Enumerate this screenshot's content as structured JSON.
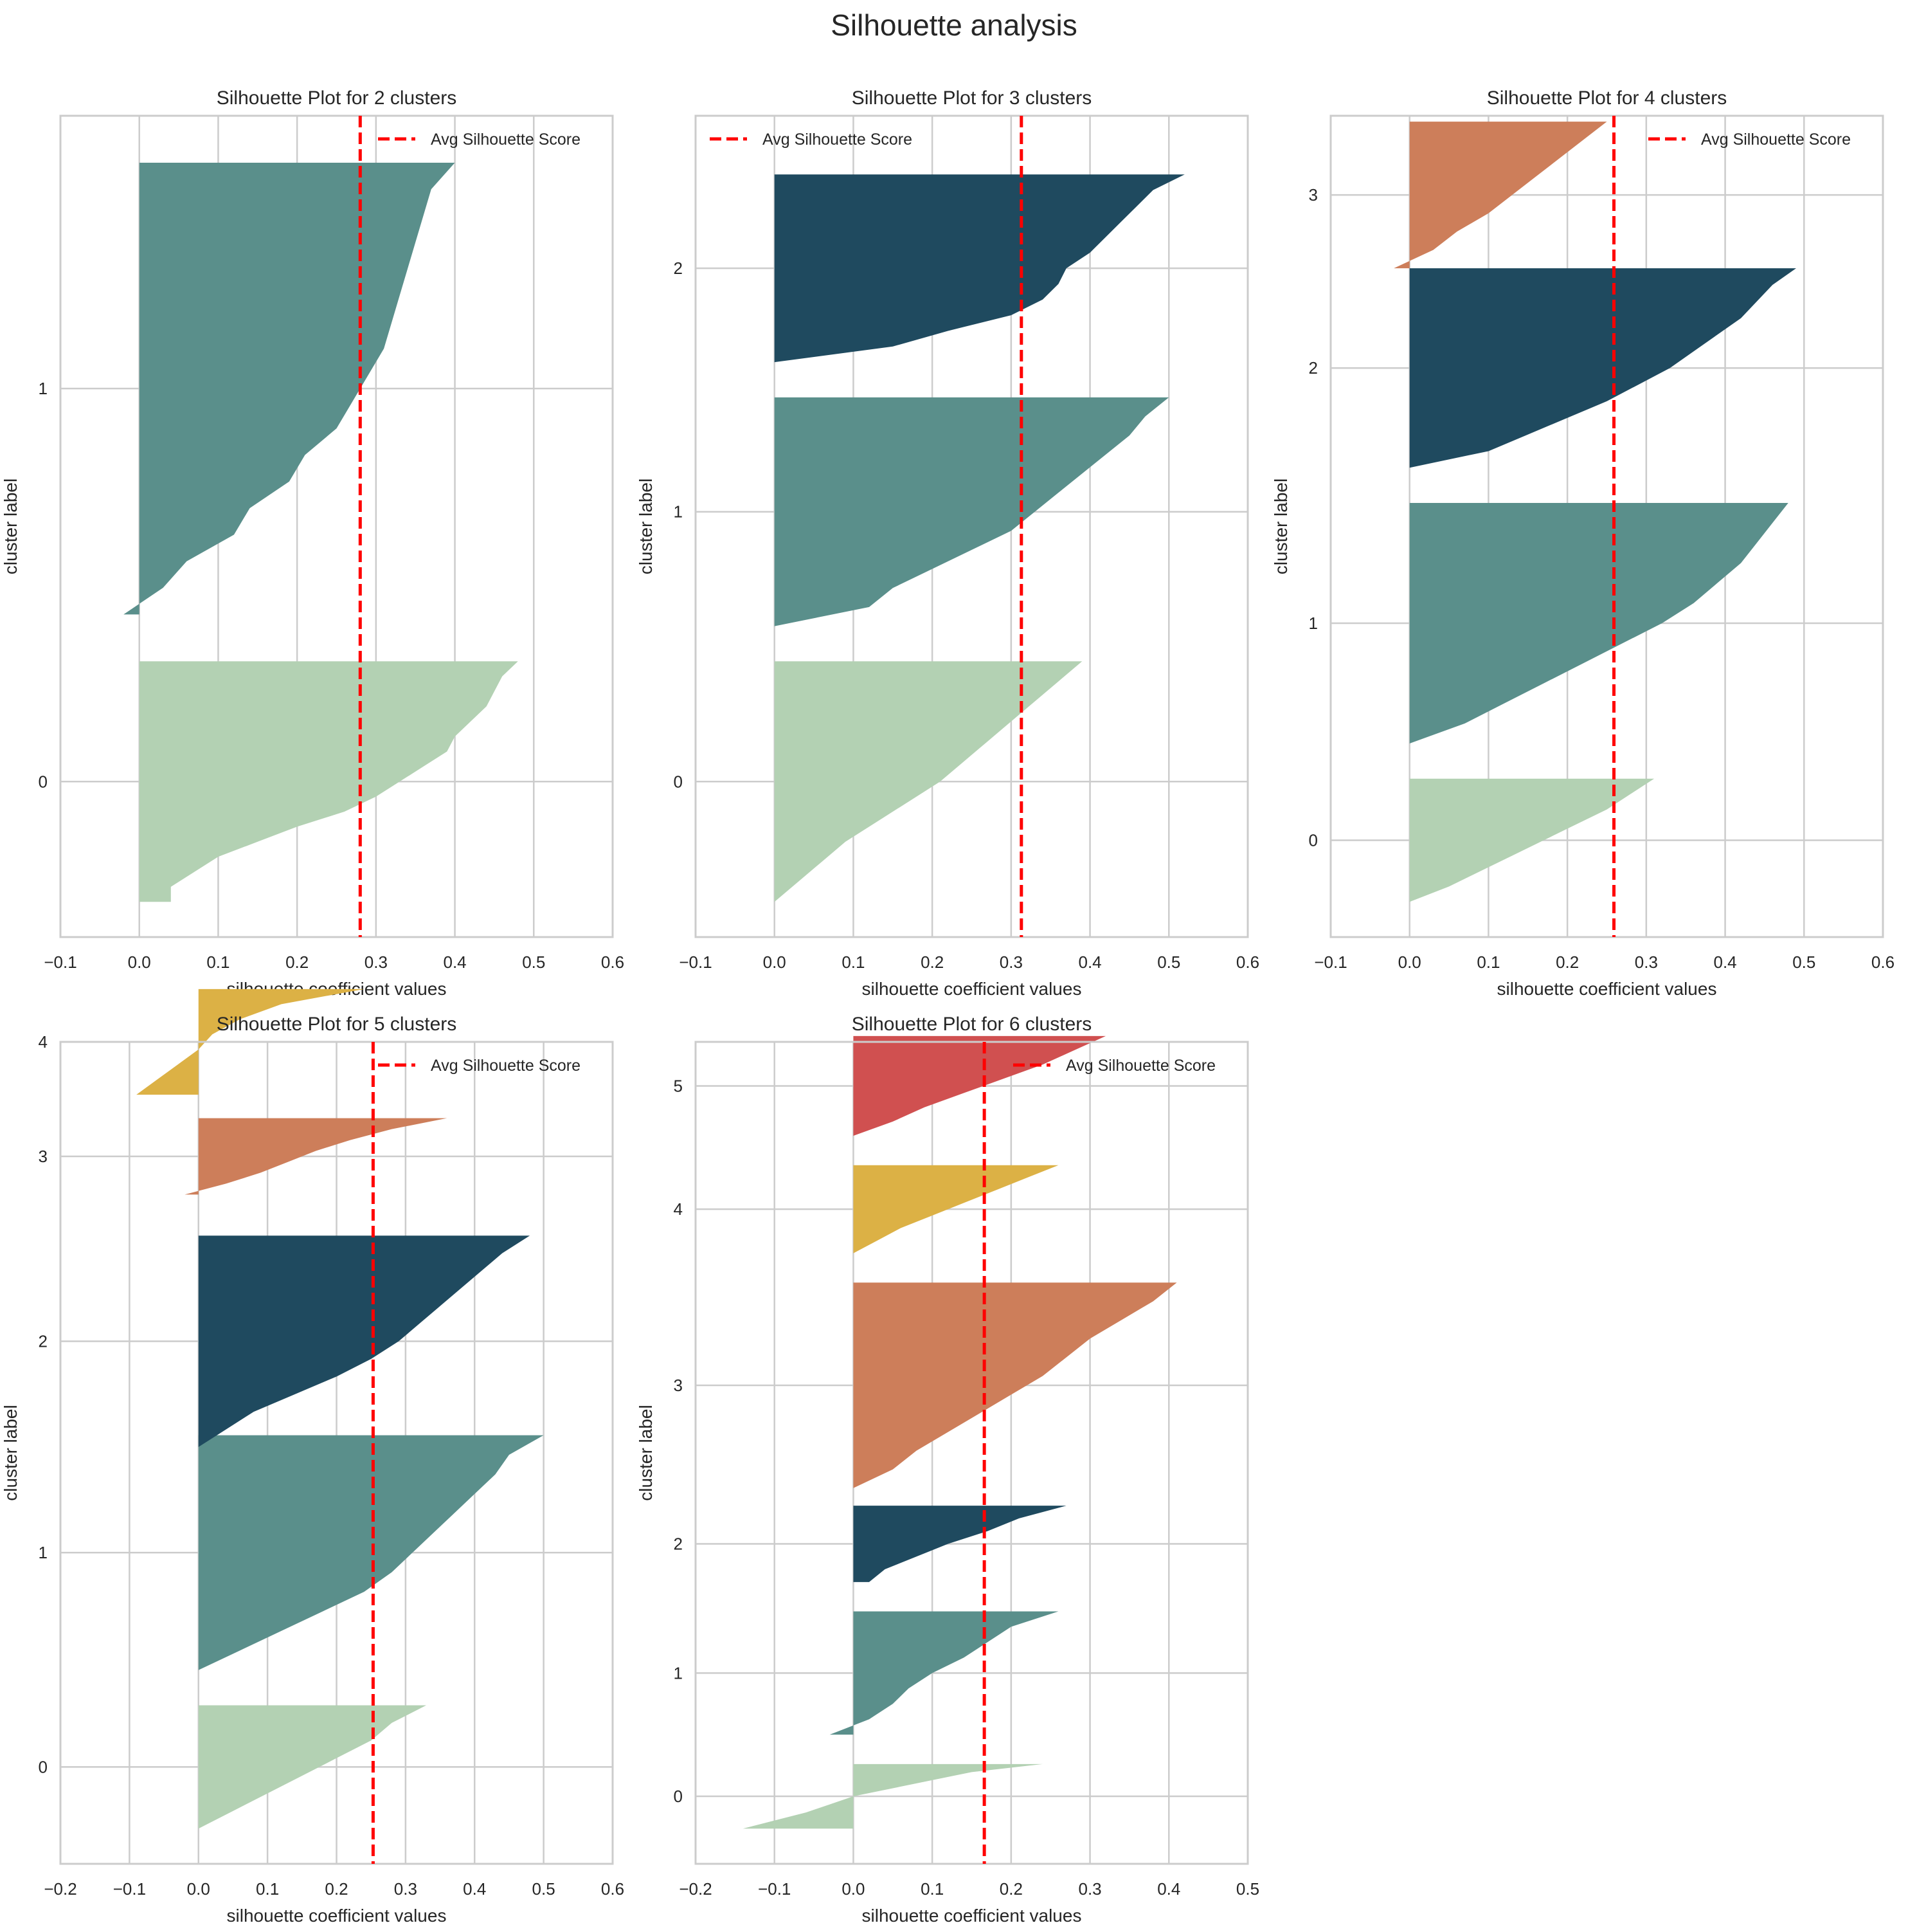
{
  "figure": {
    "title": "Silhouette analysis"
  },
  "chart_data": [
    {
      "type": "area",
      "title": "Silhouette Plot for 2 clusters",
      "xlabel": "silhouette coefficient values",
      "ylabel": "cluster label",
      "xlim": [
        -0.1,
        0.6
      ],
      "xticks": [
        "-0.1",
        "0.0",
        "0.1",
        "0.2",
        "0.3",
        "0.4",
        "0.5",
        "0.6"
      ],
      "ylim": [
        -30,
        670
      ],
      "avg_score": 0.28,
      "legend": {
        "label": "Avg Silhouette Score",
        "position": "top-right"
      },
      "clusters": [
        {
          "label": "0",
          "start": 0,
          "size": 205,
          "color": "#b3d1b3",
          "profile": [
            0.48,
            0.46,
            0.45,
            0.44,
            0.42,
            0.4,
            0.39,
            0.36,
            0.33,
            0.3,
            0.26,
            0.2,
            0.15,
            0.1,
            0.07,
            0.04,
            0.04
          ]
        },
        {
          "label": "1",
          "start": 245,
          "size": 385,
          "color": "#5a8f8b",
          "profile": [
            0.4,
            0.37,
            0.36,
            0.35,
            0.34,
            0.33,
            0.32,
            0.31,
            0.29,
            0.27,
            0.25,
            0.21,
            0.19,
            0.14,
            0.12,
            0.06,
            0.03,
            -0.02
          ]
        }
      ]
    },
    {
      "type": "area",
      "title": "Silhouette Plot for 3 clusters",
      "xlabel": "silhouette coefficient values",
      "ylabel": "cluster label",
      "xlim": [
        -0.1,
        0.6
      ],
      "xticks": [
        "-0.1",
        "0.0",
        "0.1",
        "0.2",
        "0.3",
        "0.4",
        "0.5",
        "0.6"
      ],
      "ylim": [
        -30,
        670
      ],
      "avg_score": 0.313,
      "legend": {
        "label": "Avg Silhouette Score",
        "position": "top-left"
      },
      "clusters": [
        {
          "label": "0",
          "start": 0,
          "size": 205,
          "color": "#b3d1b3",
          "profile": [
            0.39,
            0.36,
            0.33,
            0.3,
            0.27,
            0.24,
            0.21,
            0.17,
            0.13,
            0.09,
            0.06,
            0.03,
            0.0
          ]
        },
        {
          "label": "1",
          "start": 235,
          "size": 195,
          "color": "#5a8f8b",
          "profile": [
            0.5,
            0.47,
            0.45,
            0.42,
            0.39,
            0.36,
            0.33,
            0.3,
            0.25,
            0.2,
            0.15,
            0.12,
            0.0
          ]
        },
        {
          "label": "2",
          "start": 460,
          "size": 160,
          "color": "#1f4a5f",
          "profile": [
            0.52,
            0.48,
            0.46,
            0.44,
            0.42,
            0.4,
            0.37,
            0.36,
            0.34,
            0.3,
            0.22,
            0.15,
            0.0
          ]
        }
      ]
    },
    {
      "type": "area",
      "title": "Silhouette Plot for 4 clusters",
      "xlabel": "silhouette coefficient values",
      "ylabel": "cluster label",
      "xlim": [
        -0.1,
        0.6
      ],
      "xticks": [
        "-0.1",
        "0.0",
        "0.1",
        "0.2",
        "0.3",
        "0.4",
        "0.5",
        "0.6"
      ],
      "ylim": [
        -30,
        670
      ],
      "avg_score": 0.259,
      "legend": {
        "label": "Avg Silhouette Score",
        "position": "top-right"
      },
      "clusters": [
        {
          "label": "0",
          "start": 0,
          "size": 105,
          "color": "#b3d1b3",
          "profile": [
            0.31,
            0.28,
            0.25,
            0.21,
            0.17,
            0.13,
            0.09,
            0.05,
            0.0
          ]
        },
        {
          "label": "1",
          "start": 135,
          "size": 205,
          "color": "#5a8f8b",
          "profile": [
            0.48,
            0.46,
            0.44,
            0.42,
            0.39,
            0.36,
            0.32,
            0.27,
            0.22,
            0.17,
            0.12,
            0.07,
            0.0
          ]
        },
        {
          "label": "2",
          "start": 370,
          "size": 170,
          "color": "#1f4a5f",
          "profile": [
            0.49,
            0.46,
            0.44,
            0.42,
            0.39,
            0.36,
            0.33,
            0.29,
            0.25,
            0.2,
            0.15,
            0.1,
            0.0
          ]
        },
        {
          "label": "3",
          "start": 540,
          "size": 125,
          "color": "#cd7e5a",
          "profile": [
            0.25,
            0.22,
            0.19,
            0.16,
            0.13,
            0.1,
            0.06,
            0.03,
            -0.02
          ]
        }
      ]
    },
    {
      "type": "area",
      "title": "Silhouette Plot for 5 clusters",
      "xlabel": "silhouette coefficient values",
      "ylabel": "cluster label",
      "xlim": [
        -0.2,
        0.6
      ],
      "xticks": [
        "-0.2",
        "-0.1",
        "0.0",
        "0.1",
        "0.2",
        "0.3",
        "0.4",
        "0.5",
        "0.6"
      ],
      "ylim": [
        -30,
        670
      ],
      "avg_score": 0.253,
      "legend": {
        "label": "Avg Silhouette Score",
        "position": "top-right"
      },
      "clusters": [
        {
          "label": "0",
          "start": 0,
          "size": 105,
          "color": "#b3d1b3",
          "profile": [
            0.33,
            0.28,
            0.25,
            0.2,
            0.15,
            0.1,
            0.05,
            0.0
          ]
        },
        {
          "label": "1",
          "start": 135,
          "size": 200,
          "color": "#5a8f8b",
          "profile": [
            0.5,
            0.45,
            0.43,
            0.4,
            0.37,
            0.34,
            0.31,
            0.28,
            0.24,
            0.18,
            0.12,
            0.06,
            0.0
          ]
        },
        {
          "label": "2",
          "start": 325,
          "size": 180,
          "color": "#1f4a5f",
          "profile": [
            0.48,
            0.44,
            0.41,
            0.38,
            0.35,
            0.32,
            0.29,
            0.25,
            0.2,
            0.14,
            0.08,
            0.04,
            0.0
          ]
        },
        {
          "label": "3",
          "start": 540,
          "size": 65,
          "color": "#cd7e5a",
          "profile": [
            0.36,
            0.28,
            0.22,
            0.17,
            0.13,
            0.09,
            0.04,
            -0.02
          ]
        },
        {
          "label": "4",
          "start": 625,
          "size": 90,
          "color": "#dcb145",
          "profile": [
            0.24,
            0.12,
            0.06,
            0.02,
            0.0,
            -0.03,
            -0.06,
            -0.09
          ]
        }
      ]
    },
    {
      "type": "area",
      "title": "Silhouette Plot for 6 clusters",
      "xlabel": "silhouette coefficient values",
      "ylabel": "cluster label",
      "xlim": [
        -0.2,
        0.5
      ],
      "xticks": [
        "-0.2",
        "-0.1",
        "0.0",
        "0.1",
        "0.2",
        "0.3",
        "0.4",
        "0.5"
      ],
      "ylim": [
        -30,
        670
      ],
      "avg_score": 0.166,
      "legend": {
        "label": "Avg Silhouette Score",
        "position": "top-right"
      },
      "clusters": [
        {
          "label": "0",
          "start": 0,
          "size": 55,
          "color": "#b3d1b3",
          "profile": [
            0.24,
            0.15,
            0.1,
            0.05,
            0.0,
            -0.03,
            -0.06,
            -0.1,
            -0.14
          ]
        },
        {
          "label": "1",
          "start": 80,
          "size": 105,
          "color": "#5a8f8b",
          "profile": [
            0.26,
            0.2,
            0.17,
            0.14,
            0.1,
            0.07,
            0.05,
            0.02,
            -0.03
          ]
        },
        {
          "label": "2",
          "start": 210,
          "size": 65,
          "color": "#1f4a5f",
          "profile": [
            0.27,
            0.21,
            0.17,
            0.12,
            0.08,
            0.04,
            0.02
          ]
        },
        {
          "label": "3",
          "start": 290,
          "size": 175,
          "color": "#cd7e5a",
          "profile": [
            0.41,
            0.38,
            0.34,
            0.3,
            0.27,
            0.24,
            0.2,
            0.16,
            0.12,
            0.08,
            0.05,
            0.0
          ]
        },
        {
          "label": "4",
          "start": 490,
          "size": 75,
          "color": "#dcb145",
          "profile": [
            0.26,
            0.22,
            0.18,
            0.14,
            0.1,
            0.06,
            0.03,
            0.0
          ]
        },
        {
          "label": "5",
          "start": 590,
          "size": 85,
          "color": "#d05050",
          "profile": [
            0.32,
            0.28,
            0.24,
            0.19,
            0.14,
            0.09,
            0.05,
            0.0
          ]
        }
      ]
    }
  ]
}
